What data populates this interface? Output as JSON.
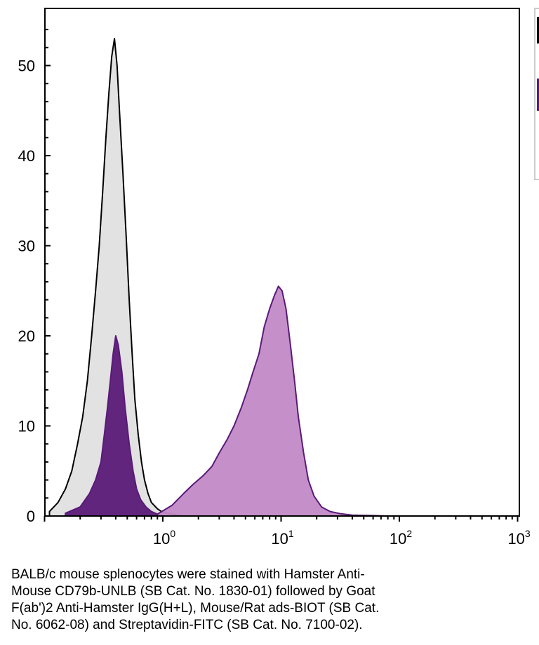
{
  "chart_data": {
    "type": "area",
    "x_scale": "log",
    "xlim": [
      0.1,
      1000
    ],
    "ylim": [
      0,
      55
    ],
    "grid": false,
    "x_ticks": [
      {
        "base": "10",
        "exp": "0",
        "value": 1
      },
      {
        "base": "10",
        "exp": "1",
        "value": 10
      },
      {
        "base": "10",
        "exp": "2",
        "value": 100
      },
      {
        "base": "10",
        "exp": "3",
        "value": 1000
      }
    ],
    "y_ticks": [
      "0",
      "10",
      "20",
      "30",
      "40",
      "50"
    ],
    "series": [
      {
        "fill": "#e0e0e0",
        "stroke": "#000000",
        "points": [
          [
            0.11,
            0.5
          ],
          [
            0.13,
            1.5
          ],
          [
            0.15,
            3
          ],
          [
            0.17,
            5
          ],
          [
            0.19,
            8
          ],
          [
            0.21,
            11
          ],
          [
            0.23,
            15
          ],
          [
            0.25,
            20
          ],
          [
            0.27,
            25
          ],
          [
            0.29,
            30
          ],
          [
            0.31,
            36
          ],
          [
            0.33,
            42
          ],
          [
            0.35,
            47
          ],
          [
            0.37,
            51
          ],
          [
            0.39,
            53
          ],
          [
            0.41,
            50
          ],
          [
            0.43,
            45
          ],
          [
            0.46,
            38
          ],
          [
            0.49,
            31
          ],
          [
            0.52,
            24
          ],
          [
            0.55,
            18
          ],
          [
            0.58,
            13
          ],
          [
            0.62,
            9
          ],
          [
            0.66,
            6
          ],
          [
            0.7,
            4
          ],
          [
            0.75,
            2.5
          ],
          [
            0.8,
            1.5
          ],
          [
            0.9,
            0.8
          ],
          [
            1.0,
            0.4
          ],
          [
            1.2,
            0.2
          ],
          [
            1.5,
            0
          ]
        ]
      },
      {
        "fill": "#5a1a78",
        "stroke": "#5a1a78",
        "points": [
          [
            0.15,
            0.3
          ],
          [
            0.2,
            1
          ],
          [
            0.24,
            2.5
          ],
          [
            0.27,
            4
          ],
          [
            0.3,
            6
          ],
          [
            0.32,
            9
          ],
          [
            0.34,
            12
          ],
          [
            0.36,
            15
          ],
          [
            0.38,
            18
          ],
          [
            0.4,
            20
          ],
          [
            0.42,
            19
          ],
          [
            0.45,
            16
          ],
          [
            0.48,
            12
          ],
          [
            0.52,
            8
          ],
          [
            0.56,
            5
          ],
          [
            0.6,
            3
          ],
          [
            0.65,
            1.8
          ],
          [
            0.72,
            1
          ],
          [
            0.8,
            0.5
          ],
          [
            0.9,
            0.2
          ],
          [
            1.0,
            0
          ]
        ]
      },
      {
        "fill": "#c28ac6",
        "stroke": "#5a1a78",
        "points": [
          [
            0.9,
            0.2
          ],
          [
            1.2,
            1.2
          ],
          [
            1.5,
            2.5
          ],
          [
            1.8,
            3.5
          ],
          [
            2.2,
            4.5
          ],
          [
            2.6,
            5.5
          ],
          [
            3.0,
            7
          ],
          [
            3.5,
            8.5
          ],
          [
            4.0,
            10
          ],
          [
            4.6,
            12
          ],
          [
            5.2,
            14
          ],
          [
            5.8,
            16
          ],
          [
            6.5,
            18
          ],
          [
            7.2,
            21
          ],
          [
            8.0,
            23
          ],
          [
            8.8,
            24.5
          ],
          [
            9.5,
            25.5
          ],
          [
            10.2,
            25
          ],
          [
            11,
            23
          ],
          [
            12,
            19
          ],
          [
            13,
            15
          ],
          [
            14,
            11
          ],
          [
            15.5,
            7
          ],
          [
            17,
            4
          ],
          [
            19,
            2.2
          ],
          [
            22,
            1
          ],
          [
            26,
            0.5
          ],
          [
            32,
            0.25
          ],
          [
            40,
            0.1
          ],
          [
            60,
            0.05
          ],
          [
            80,
            0
          ]
        ]
      }
    ]
  },
  "legend": {
    "swatches": [
      "#000000",
      "#5a1a78"
    ]
  },
  "caption": {
    "lines": [
      "BALB/c mouse splenocytes were stained with Hamster Anti-",
      "Mouse CD79b-UNLB (SB Cat. No. 1830-01) followed by Goat",
      "F(ab')2 Anti-Hamster IgG(H+L), Mouse/Rat ads-BIOT (SB Cat.",
      "No. 6062-08) and Streptavidin-FITC (SB Cat. No. 7100-02)."
    ]
  }
}
